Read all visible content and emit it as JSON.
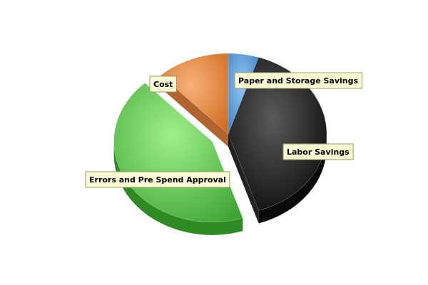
{
  "chart_data": {
    "type": "pie",
    "title": "",
    "slices": [
      {
        "label": "Paper and Storage Savings",
        "value": 5,
        "color": "#5b9bd5"
      },
      {
        "label": "Labor Savings",
        "value": 40,
        "color": "#262626"
      },
      {
        "label": "Errors and Pre Spend Approval",
        "value": 43,
        "color": "#5cc64a"
      },
      {
        "label": "Cost",
        "value": 12,
        "color": "#e08a3c"
      }
    ],
    "legend": "none",
    "style": "3d-exploded"
  }
}
